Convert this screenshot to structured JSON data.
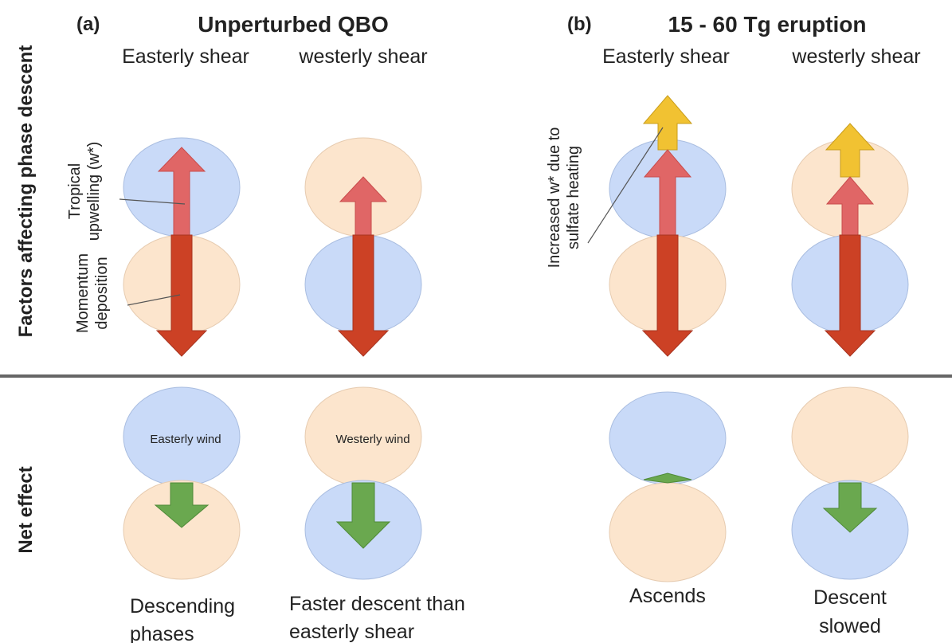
{
  "panels": [
    {
      "label": "(a)",
      "title": "Unperturbed QBO",
      "columns": [
        "Easterly shear",
        "westerly shear"
      ]
    },
    {
      "label": "(b)",
      "title": "15 - 60 Tg eruption",
      "columns": [
        "Easterly shear",
        "westerly shear"
      ]
    }
  ],
  "rows": [
    "Factors affecting phase descent",
    "Net effect"
  ],
  "annotations": {
    "upwelling": [
      "Tropical",
      "upwelling (w*)"
    ],
    "momentum": [
      "Momentum",
      "deposition"
    ],
    "increased": [
      "Increased w* due to",
      "sulfate heating"
    ],
    "easterly_wind": "Easterly wind",
    "westerly_wind": "Westerly wind"
  },
  "outcomes": [
    [
      "Descending",
      "phases"
    ],
    [
      "Faster descent than",
      "easterly shear"
    ],
    [
      "Ascends"
    ],
    [
      "Descent",
      "slowed"
    ]
  ]
}
